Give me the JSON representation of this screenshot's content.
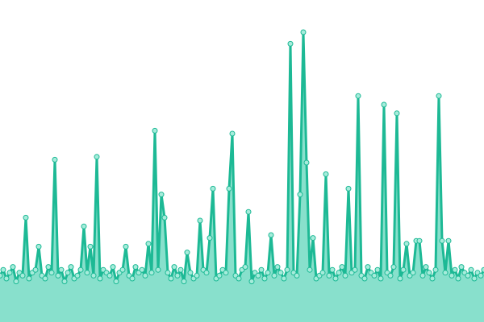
{
  "chart_data": {
    "type": "area",
    "values": [
      16,
      18,
      15,
      17,
      19,
      14,
      17,
      16,
      36,
      15,
      17,
      18,
      26,
      16,
      15,
      19,
      17,
      56,
      16,
      18,
      14,
      17,
      19,
      15,
      16,
      18,
      33,
      17,
      26,
      16,
      57,
      15,
      18,
      17,
      16,
      19,
      14,
      17,
      18,
      26,
      16,
      15,
      19,
      17,
      18,
      16,
      27,
      17,
      66,
      18,
      44,
      36,
      17,
      15,
      19,
      16,
      18,
      14,
      24,
      17,
      15,
      16,
      35,
      18,
      17,
      29,
      46,
      15,
      16,
      18,
      17,
      46,
      65,
      16,
      15,
      18,
      19,
      38,
      14,
      17,
      16,
      18,
      15,
      17,
      30,
      16,
      19,
      17,
      15,
      18,
      96,
      17,
      16,
      44,
      100,
      55,
      18,
      29,
      15,
      16,
      17,
      51,
      16,
      18,
      15,
      17,
      19,
      16,
      46,
      17,
      18,
      78,
      16,
      15,
      19,
      17,
      16,
      18,
      15,
      75,
      17,
      16,
      19,
      72,
      15,
      18,
      27,
      16,
      17,
      28,
      28,
      16,
      19,
      17,
      15,
      18,
      78,
      28,
      17,
      28,
      16,
      18,
      15,
      19,
      17,
      16,
      18,
      15,
      17,
      16,
      18
    ],
    "ylim": [
      0,
      100
    ],
    "color": "#1db995",
    "fill_color": "#88e0cc",
    "marker_color": "#a6ecdb"
  }
}
